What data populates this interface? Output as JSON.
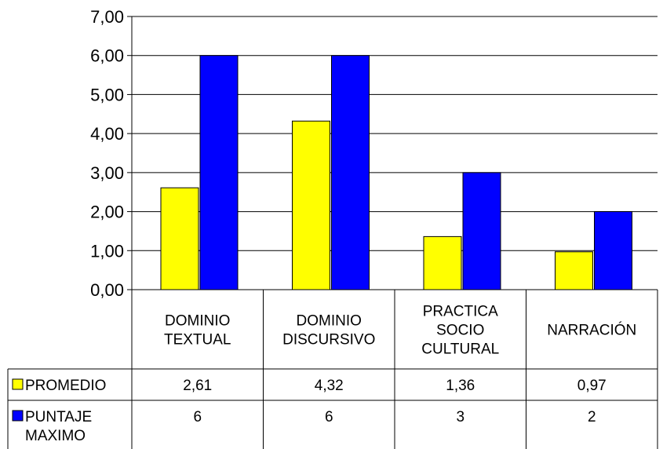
{
  "chart_data": {
    "type": "bar",
    "categories": [
      [
        "DOMINIO",
        "TEXTUAL"
      ],
      [
        "DOMINIO",
        "DISCURSIVO"
      ],
      [
        "PRACTICA",
        "SOCIO",
        "CULTURAL"
      ],
      [
        "NARRACIÓN"
      ]
    ],
    "series": [
      {
        "name": [
          "PROMEDIO"
        ],
        "values": [
          2.61,
          4.32,
          1.36,
          0.97
        ],
        "table_values": [
          "2,61",
          "4,32",
          "1,36",
          "0,97"
        ],
        "color": "#ffff00"
      },
      {
        "name": [
          "PUNTAJE",
          "MAXIMO"
        ],
        "values": [
          6,
          6,
          3,
          2
        ],
        "table_values": [
          "6",
          "6",
          "3",
          "2"
        ],
        "color": "#0000ff"
      }
    ],
    "ylim": [
      0,
      7
    ],
    "yticks": [
      "0,00",
      "1,00",
      "2,00",
      "3,00",
      "4,00",
      "5,00",
      "6,00",
      "7,00"
    ],
    "grid": true,
    "legend": "data-table"
  }
}
